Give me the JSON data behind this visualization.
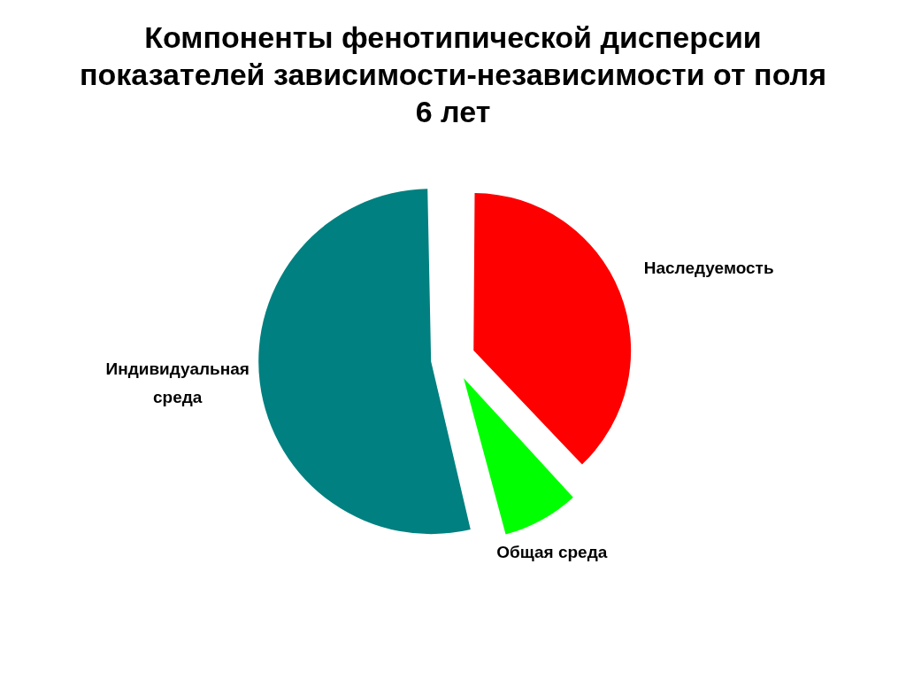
{
  "chart_data": {
    "type": "pie",
    "title": "Компоненты фенотипической дисперсии показателей зависимости-независимости от поля 6 лет",
    "categories": [
      "Наследуемость",
      "Общая среда",
      "Индивидуальная среда"
    ],
    "values": [
      38,
      8,
      54
    ],
    "colors": [
      "#ff0000",
      "#00ff00",
      "#008080"
    ]
  }
}
